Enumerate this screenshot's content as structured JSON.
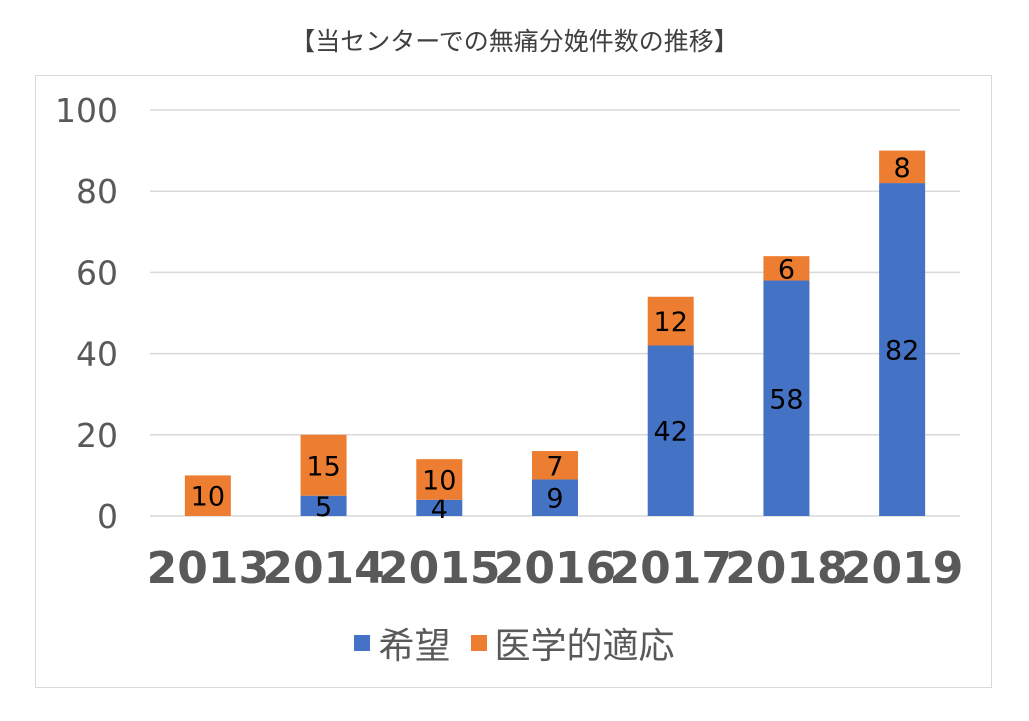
{
  "chart_data": {
    "type": "bar",
    "stacked": true,
    "title": "【当センターでの無痛分娩件数の推移】",
    "categories": [
      "2013",
      "2014",
      "2015",
      "2016",
      "2017",
      "2018",
      "2019"
    ],
    "series": [
      {
        "name": "希望",
        "color": "#4472c4",
        "values": [
          0,
          5,
          4,
          9,
          42,
          58,
          82
        ]
      },
      {
        "name": "医学的適応",
        "color": "#ed7d31",
        "values": [
          10,
          15,
          10,
          7,
          12,
          6,
          8
        ]
      }
    ],
    "data_labels": [
      [
        "",
        "5",
        "4",
        "9",
        "42",
        "58",
        "82"
      ],
      [
        "10",
        "15",
        "10",
        "7",
        "12",
        "6",
        "8"
      ]
    ],
    "ylim": [
      0,
      100
    ],
    "yticks": [
      0,
      20,
      40,
      60,
      80,
      100
    ],
    "grid": true,
    "legend_position": "bottom"
  }
}
